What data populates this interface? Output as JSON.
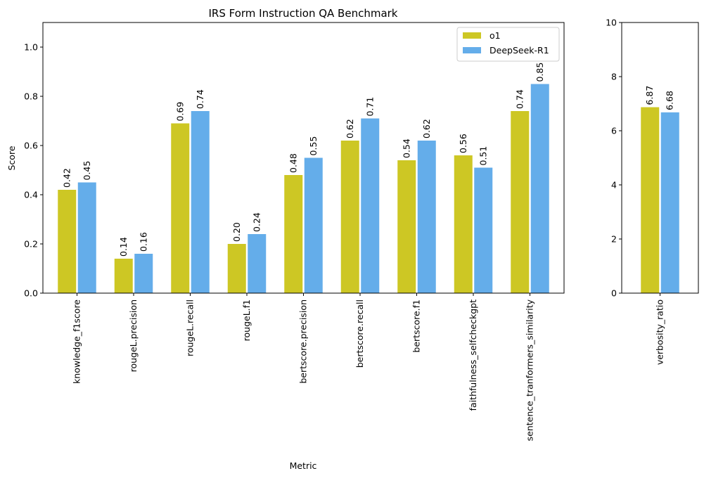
{
  "colors": {
    "o1": "#cdc724",
    "deepseek": "#64adea",
    "axis": "#000000",
    "background": "#ffffff"
  },
  "chart_data": [
    {
      "type": "bar",
      "title": "IRS Form Instruction QA Benchmark",
      "xlabel": "Metric",
      "ylabel": "Score",
      "ylim": [
        0,
        1.1
      ],
      "yticks": [
        "0.0",
        "0.2",
        "0.4",
        "0.6",
        "0.8",
        "1.0"
      ],
      "grid": false,
      "legend_position": "top-right",
      "categories": [
        "knowledge_f1score",
        "rougeL.precision",
        "rougeL.recall",
        "rougeL.f1",
        "bertscore.precision",
        "bertscore.recall",
        "bertscore.f1",
        "faithfulness_selfcheckgpt",
        "sentence_tranformers_similarity"
      ],
      "series": [
        {
          "name": "o1",
          "values": [
            0.42,
            0.14,
            0.69,
            0.2,
            0.48,
            0.62,
            0.54,
            0.56,
            0.74
          ],
          "labels": [
            "0.42",
            "0.14",
            "0.69",
            "0.20",
            "0.48",
            "0.62",
            "0.54",
            "0.56",
            "0.74"
          ]
        },
        {
          "name": "DeepSeek-R1",
          "values": [
            0.45,
            0.16,
            0.74,
            0.24,
            0.55,
            0.71,
            0.62,
            0.51,
            0.85
          ],
          "labels": [
            "0.45",
            "0.16",
            "0.74",
            "0.24",
            "0.55",
            "0.71",
            "0.62",
            "0.51",
            "0.85"
          ]
        }
      ]
    },
    {
      "type": "bar",
      "ylim": [
        0,
        10
      ],
      "yticks": [
        "0",
        "2",
        "4",
        "6",
        "8",
        "10"
      ],
      "grid": false,
      "categories": [
        "verbosity_ratio"
      ],
      "series": [
        {
          "name": "o1",
          "values": [
            6.87
          ],
          "labels": [
            "6.87"
          ]
        },
        {
          "name": "DeepSeek-R1",
          "values": [
            6.68
          ],
          "labels": [
            "6.68"
          ]
        }
      ]
    }
  ]
}
